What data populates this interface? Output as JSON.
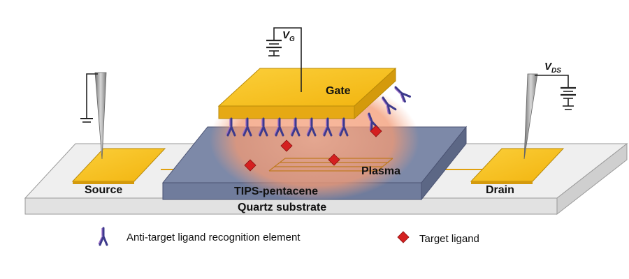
{
  "labels": {
    "gate": "Gate",
    "source": "Source",
    "drain": "Drain",
    "semiconductor": "TIPS-pentacene",
    "substrate": "Quartz substrate",
    "plasma": "Plasma"
  },
  "voltages": {
    "gate": {
      "main": "V",
      "sub": "G"
    },
    "drain": {
      "main": "V",
      "sub": "DS"
    }
  },
  "legend": {
    "antibody": "Anti-target ligand recognition element",
    "target": "Target ligand"
  },
  "colors": {
    "gold": "#F8C01A",
    "gold_dark": "#D49A0C",
    "substrate_top": "#F0F0F0",
    "semiconductor": "#8591AD",
    "plasma": "#F4A383",
    "antibody_dark": "#3D3A8C",
    "antibody_light": "#9B6BC9",
    "target": "#D42020"
  }
}
